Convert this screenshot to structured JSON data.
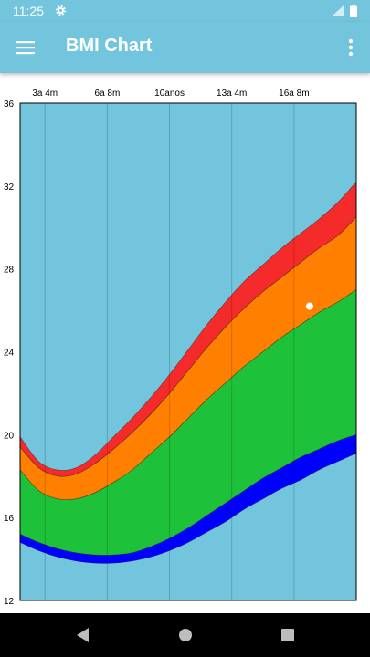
{
  "status_bar": {
    "time": "11:25",
    "icons": [
      "gear-icon",
      "signal-icon",
      "battery-icon"
    ]
  },
  "app_bar": {
    "title": "BMI Chart",
    "menu_icon": "hamburger-menu-icon",
    "overflow_icon": "more-vert-icon"
  },
  "navigation_bar": {
    "buttons": [
      "back-triangle-icon",
      "home-circle-icon",
      "recents-square-icon"
    ]
  },
  "chart_data": {
    "type": "area",
    "title": "",
    "xlabel": "",
    "ylabel": "",
    "x_tick_labels": [
      {
        "x": 3.333,
        "label": "3a 4m"
      },
      {
        "x": 6.667,
        "label": "6a 8m"
      },
      {
        "x": 10.0,
        "label": "10anos"
      },
      {
        "x": 13.333,
        "label": "13a 4m"
      },
      {
        "x": 16.667,
        "label": "16a 8m"
      }
    ],
    "xlim": [
      2,
      20
    ],
    "ylim": [
      12,
      36
    ],
    "y_ticks": [
      12,
      16,
      20,
      24,
      28,
      32,
      36
    ],
    "x": [
      2.0,
      3.0,
      4.0,
      5.0,
      6.0,
      7.0,
      8.0,
      9.0,
      10.0,
      11.0,
      12.0,
      13.0,
      14.0,
      15.0,
      16.0,
      17.0,
      18.0,
      19.0,
      20.0
    ],
    "boundaries": {
      "p3": [
        14.8,
        14.4,
        14.1,
        13.9,
        13.8,
        13.8,
        13.9,
        14.1,
        14.4,
        14.8,
        15.3,
        15.8,
        16.4,
        16.9,
        17.4,
        17.8,
        18.3,
        18.7,
        19.1
      ],
      "p5": [
        15.2,
        14.8,
        14.5,
        14.3,
        14.2,
        14.2,
        14.3,
        14.6,
        15.0,
        15.5,
        16.1,
        16.7,
        17.3,
        17.9,
        18.4,
        18.9,
        19.3,
        19.7,
        20.0
      ],
      "p85": [
        18.3,
        17.3,
        16.9,
        16.9,
        17.2,
        17.7,
        18.3,
        19.1,
        19.9,
        20.8,
        21.7,
        22.5,
        23.3,
        24.0,
        24.7,
        25.3,
        25.9,
        26.4,
        27.0
      ],
      "p95": [
        19.4,
        18.4,
        18.0,
        18.1,
        18.6,
        19.3,
        20.1,
        21.0,
        22.0,
        23.1,
        24.2,
        25.2,
        26.1,
        26.9,
        27.6,
        28.3,
        29.0,
        29.6,
        30.5
      ],
      "p97": [
        19.9,
        18.7,
        18.3,
        18.4,
        19.0,
        19.9,
        20.8,
        21.8,
        22.9,
        24.1,
        25.3,
        26.4,
        27.4,
        28.2,
        29.0,
        29.7,
        30.4,
        31.2,
        32.2
      ]
    },
    "bands": [
      {
        "name": "",
        "from": "p3",
        "to": "p5",
        "color": "#0000ff"
      },
      {
        "name": "",
        "from": "p5",
        "to": "p85",
        "color": "#1ec23a"
      },
      {
        "name": "",
        "from": "p85",
        "to": "p95",
        "color": "#ff8000"
      },
      {
        "name": "",
        "from": "p95",
        "to": "p97",
        "color": "#f52a2a"
      }
    ],
    "points": [
      {
        "x": 17.5,
        "y": 26.2
      }
    ],
    "background_color": "#72c5dd",
    "grid": {
      "vertical": true,
      "horizontal": false
    }
  },
  "colors": {
    "primary": "#72c5dd",
    "nav_background": "#000000",
    "point": "#ffffff"
  }
}
